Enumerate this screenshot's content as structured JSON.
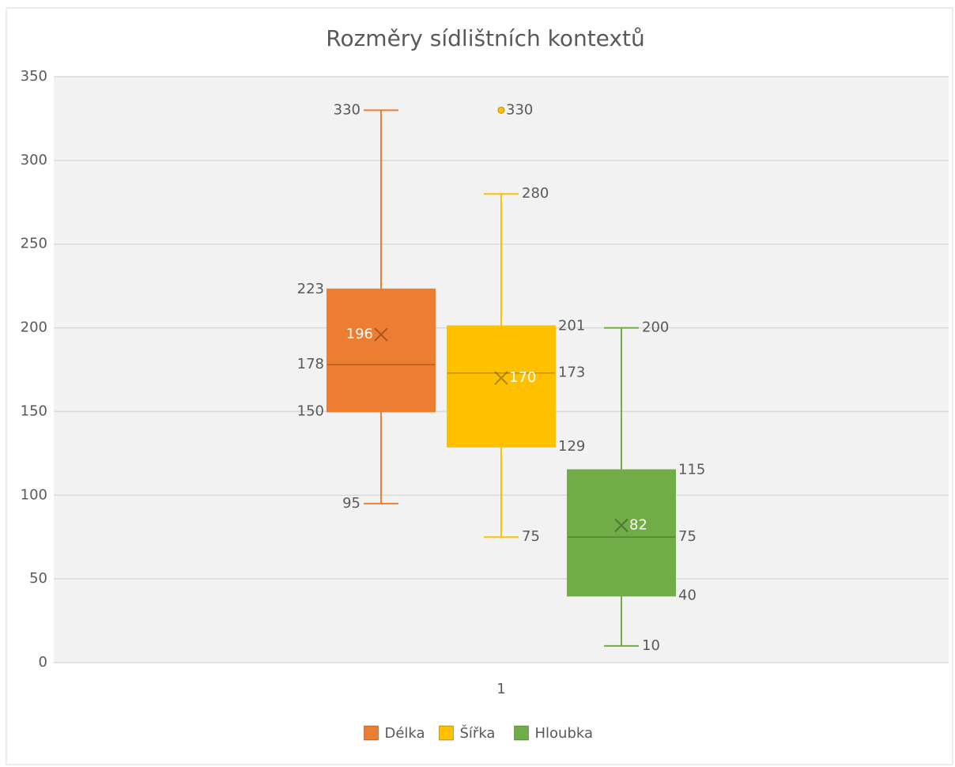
{
  "chart_data": {
    "type": "box",
    "title": "Rozměry sídlištních kontextů",
    "categories": [
      "1"
    ],
    "series": [
      {
        "name": "Délka",
        "color": "#ED7D31",
        "min": 95,
        "q1": 150,
        "median": 178,
        "q3": 223,
        "max": 330,
        "mean": 196,
        "outliers": []
      },
      {
        "name": "Šířka",
        "color": "#FFC000",
        "min": 75,
        "q1": 129,
        "median": 173,
        "q3": 201,
        "max": 280,
        "mean": 170,
        "outliers": [
          330
        ]
      },
      {
        "name": "Hloubka",
        "color": "#70AD47",
        "min": 10,
        "q1": 40,
        "median": 75,
        "q3": 115,
        "max": 200,
        "mean": 82,
        "outliers": []
      }
    ],
    "ylim": [
      0,
      350
    ],
    "yticks": [
      0,
      50,
      100,
      150,
      200,
      250,
      300,
      350
    ],
    "grid": true,
    "legend": "bottom"
  }
}
